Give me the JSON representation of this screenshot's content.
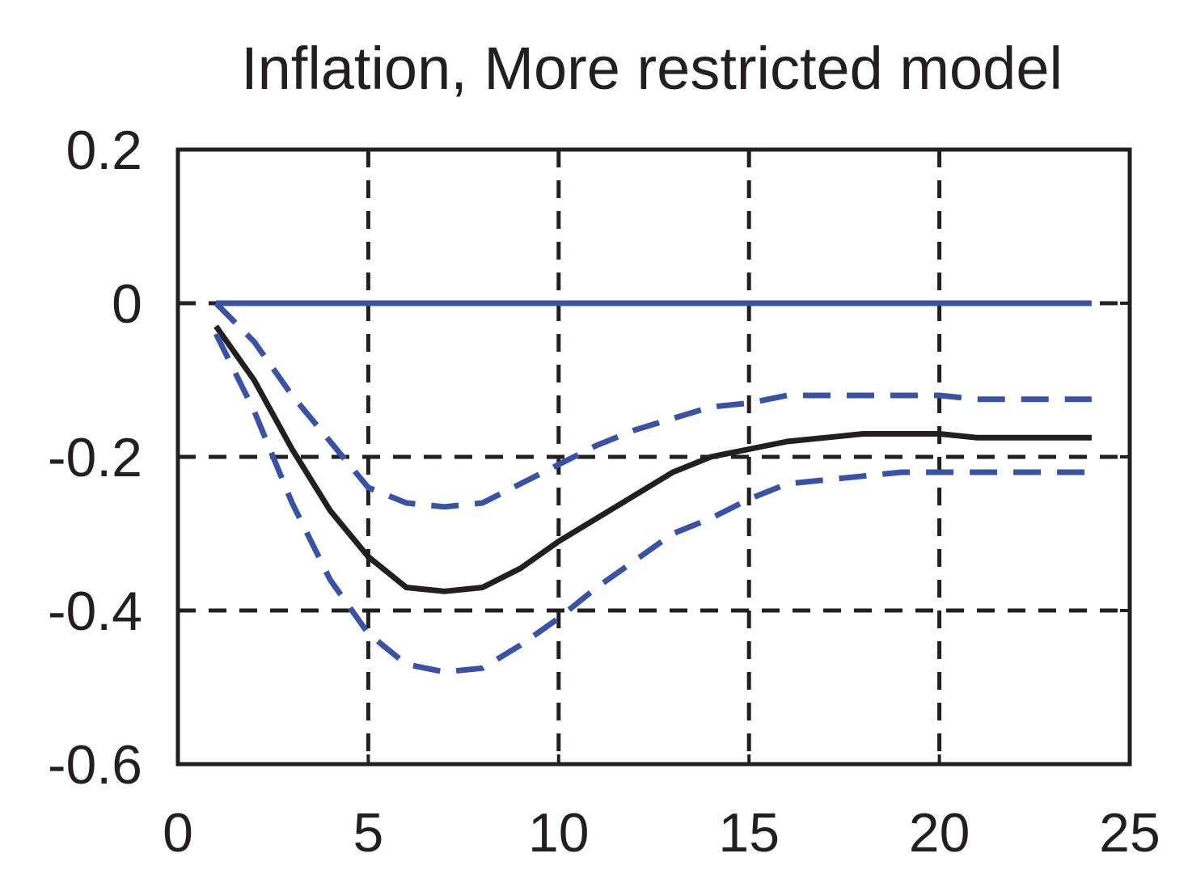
{
  "chart_data": {
    "type": "line",
    "title": "Inflation, More restricted model",
    "xlabel": "",
    "ylabel": "",
    "xlim": [
      0,
      25
    ],
    "ylim": [
      -0.6,
      0.2
    ],
    "x_ticks": [
      0,
      5,
      10,
      15,
      20,
      25
    ],
    "x_tick_labels": [
      "0",
      "5",
      "10",
      "15",
      "20",
      "25"
    ],
    "y_ticks": [
      -0.6,
      -0.4,
      -0.2,
      0,
      0.2
    ],
    "y_tick_labels": [
      "-0.6",
      "-0.4",
      "-0.2",
      "0",
      "0.2"
    ],
    "grid": "dashed",
    "legend": "none",
    "x": [
      1,
      2,
      3,
      4,
      5,
      6,
      7,
      8,
      9,
      10,
      11,
      12,
      13,
      14,
      15,
      16,
      17,
      18,
      19,
      20,
      21,
      22,
      23,
      24
    ],
    "series": [
      {
        "style": "solid",
        "color": "#231f20",
        "values": [
          -0.03,
          -0.1,
          -0.19,
          -0.27,
          -0.33,
          -0.37,
          -0.375,
          -0.37,
          -0.345,
          -0.31,
          -0.28,
          -0.25,
          -0.22,
          -0.2,
          -0.19,
          -0.18,
          -0.175,
          -0.17,
          -0.17,
          -0.17,
          -0.175,
          -0.175,
          -0.175,
          -0.175
        ]
      },
      {
        "style": "dashed",
        "color": "#3a52a3",
        "values": [
          0.0,
          -0.05,
          -0.12,
          -0.18,
          -0.24,
          -0.26,
          -0.265,
          -0.26,
          -0.235,
          -0.21,
          -0.185,
          -0.165,
          -0.15,
          -0.135,
          -0.13,
          -0.12,
          -0.12,
          -0.12,
          -0.12,
          -0.12,
          -0.125,
          -0.125,
          -0.125,
          -0.125
        ]
      },
      {
        "style": "dashed",
        "color": "#3a52a3",
        "values": [
          -0.04,
          -0.14,
          -0.26,
          -0.36,
          -0.43,
          -0.47,
          -0.48,
          -0.475,
          -0.445,
          -0.41,
          -0.37,
          -0.335,
          -0.3,
          -0.28,
          -0.255,
          -0.235,
          -0.23,
          -0.225,
          -0.22,
          -0.22,
          -0.22,
          -0.22,
          -0.22,
          -0.22
        ]
      },
      {
        "style": "solid",
        "color": "#3a52a3",
        "values": [
          0.0,
          0.0,
          0.0,
          0.0,
          0.0,
          0.0,
          0.0,
          0.0,
          0.0,
          0.0,
          0.0,
          0.0,
          0.0,
          0.0,
          0.0,
          0.0,
          0.0,
          0.0,
          0.0,
          0.0,
          0.0,
          0.0,
          0.0,
          0.0
        ]
      }
    ]
  }
}
